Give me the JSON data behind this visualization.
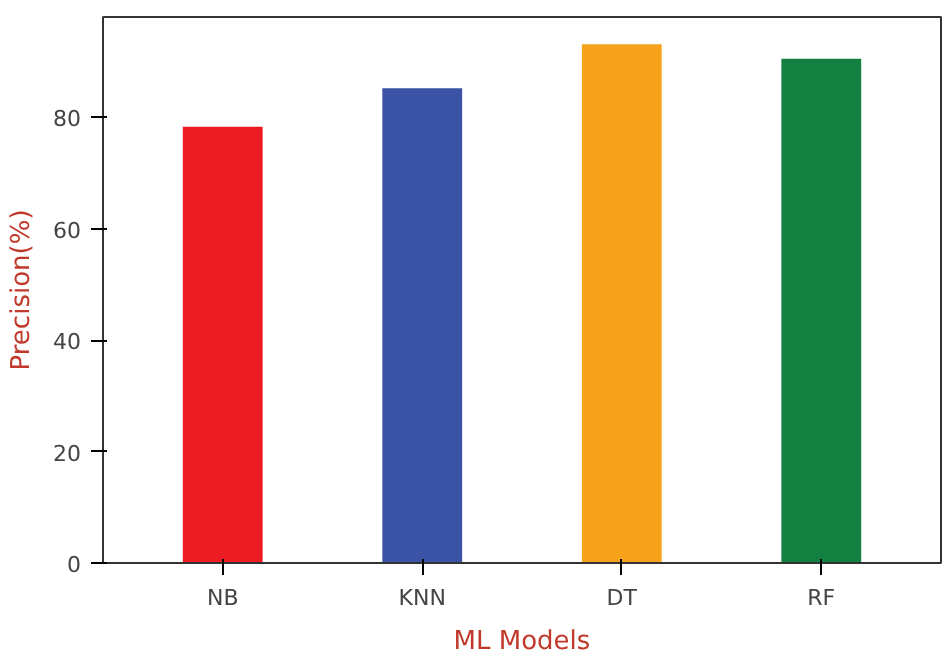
{
  "chart_data": {
    "type": "bar",
    "xlabel": "ML Models",
    "ylabel": "Precision(%)",
    "categories": [
      "NB",
      "KNN",
      "DT",
      "RF"
    ],
    "values": [
      78.3,
      85.2,
      93.1,
      90.5
    ],
    "colors": [
      "#ed1c24",
      "#3a53a4",
      "#f7a21b",
      "#118040"
    ],
    "ylim": [
      0,
      98
    ],
    "yticks": [
      0,
      20,
      40,
      60,
      80
    ],
    "grid": false
  }
}
